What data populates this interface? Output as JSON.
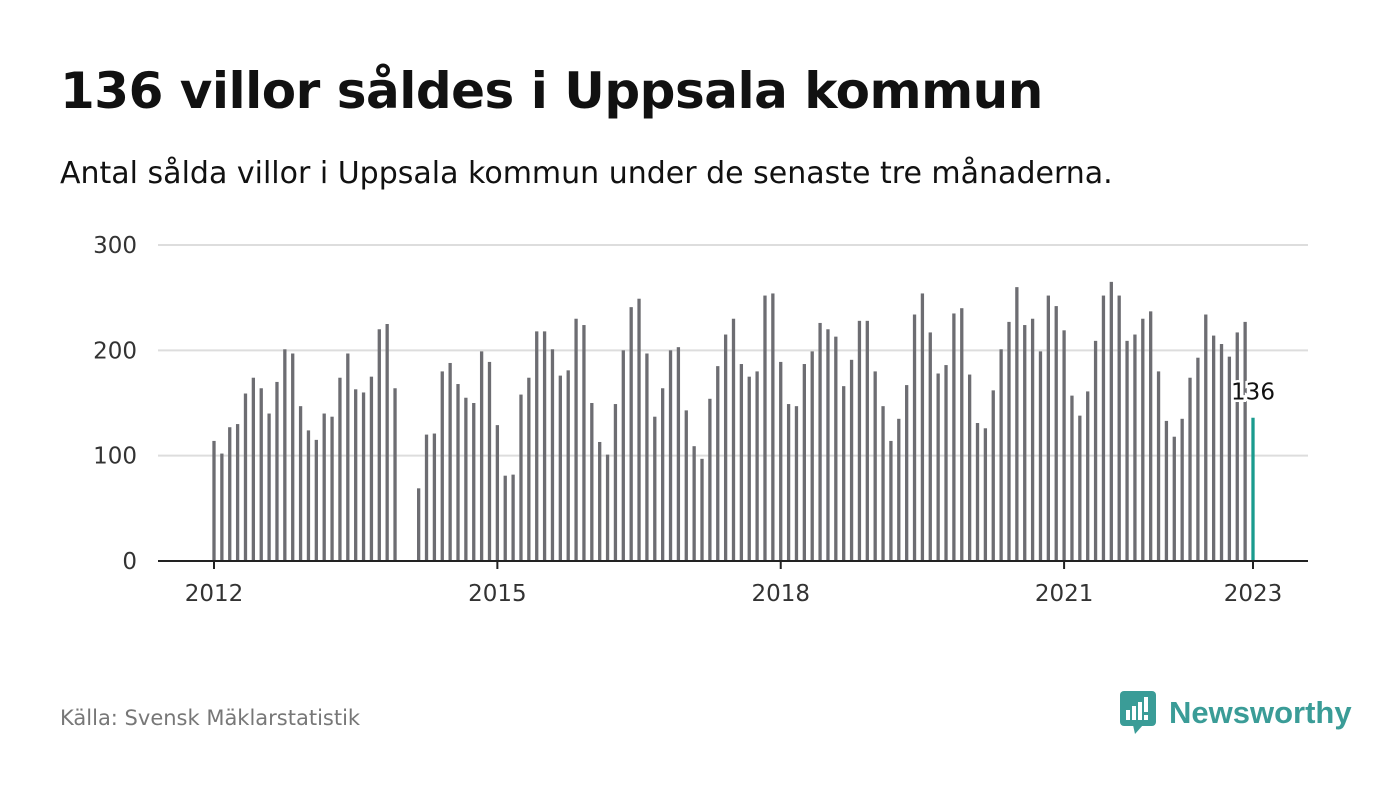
{
  "title": "136 villor såldes i Uppsala kommun",
  "subtitle": "Antal sålda villor i Uppsala kommun under de senaste tre månaderna.",
  "source": "Källa: Svensk Mäklarstatistik",
  "brand": {
    "name": "Newsworthy",
    "icon": "bar-chart-speech-icon",
    "color": "#3a9c97"
  },
  "colors": {
    "bar": "#6d6d72",
    "highlight": "#1a9b8e",
    "grid": "#dddddd",
    "axis": "#222222"
  },
  "chart_data": {
    "type": "bar",
    "title": "136 villor såldes i Uppsala kommun",
    "xlabel": "",
    "ylabel": "",
    "ylim": [
      0,
      300
    ],
    "y_ticks": [
      "0",
      "100",
      "200",
      "300"
    ],
    "x_ticks": [
      "2012",
      "2015",
      "2018",
      "2021",
      "2023"
    ],
    "grid": true,
    "series": [
      {
        "start": "2012-01",
        "end": "2023-01",
        "values": [
          114,
          102,
          127,
          130,
          159,
          174,
          164,
          140,
          170,
          201,
          197,
          147,
          124,
          115,
          140,
          137,
          174,
          197,
          163,
          160,
          175,
          220,
          225,
          164,
          null,
          null,
          69,
          120,
          121,
          180,
          188,
          168,
          155,
          150,
          199,
          189,
          129,
          81,
          82,
          158,
          174,
          218,
          218,
          201,
          176,
          181,
          230,
          224,
          150,
          113,
          101,
          149,
          200,
          241,
          249,
          197,
          137,
          164,
          200,
          203,
          143,
          109,
          97,
          154,
          185,
          215,
          230,
          187,
          175,
          180,
          252,
          254,
          189,
          149,
          147,
          187,
          199,
          226,
          220,
          213,
          166,
          191,
          228,
          228,
          180,
          147,
          114,
          135,
          167,
          234,
          254,
          217,
          178,
          186,
          235,
          240,
          177,
          131,
          126,
          162,
          201,
          227,
          260,
          224,
          230,
          199,
          252,
          242,
          219,
          157,
          138,
          161,
          209,
          252,
          265,
          252,
          209,
          215,
          230,
          237,
          180,
          133,
          118,
          135,
          174,
          193,
          234,
          214,
          206,
          194,
          217,
          227,
          136
        ]
      }
    ],
    "annotation": {
      "label": "136",
      "value": 136,
      "date": "2023-01"
    }
  }
}
